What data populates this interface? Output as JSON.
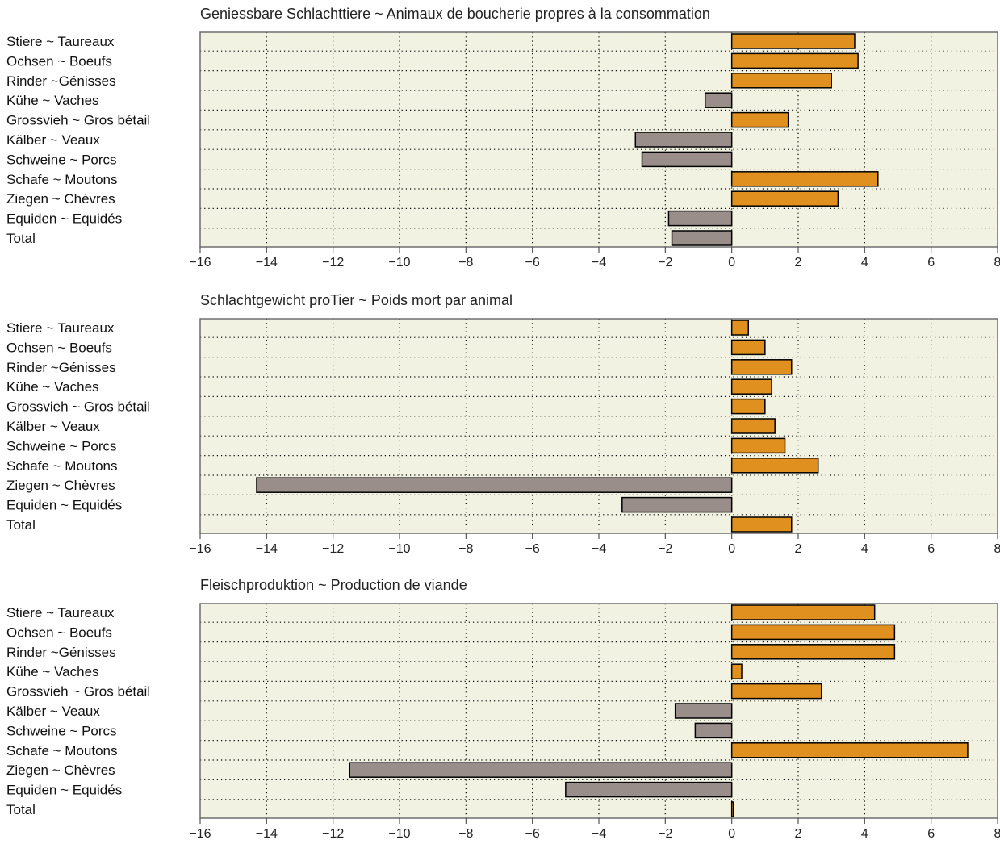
{
  "colors": {
    "positive": "#E0901F",
    "negative": "#9A8E8A",
    "plot_background": "#F2F2E2",
    "bar_border": "#000000"
  },
  "chart_data": [
    {
      "type": "bar",
      "orientation": "horizontal",
      "title": "Geniessbare Schlachttiere ~ Animaux de boucherie propres à la consommation",
      "categories": [
        "Stiere ~ Taureaux",
        "Ochsen ~ Boeufs",
        "Rinder ~Génisses",
        "Kühe ~ Vaches",
        "Grossvieh ~ Gros bétail",
        "Kälber ~ Veaux",
        "Schweine ~ Porcs",
        "Schafe ~ Moutons",
        "Ziegen ~ Chèvres",
        "Equiden ~ Equidés",
        "Total"
      ],
      "values": [
        3.7,
        3.8,
        3.0,
        -0.8,
        1.7,
        -2.9,
        -2.7,
        4.4,
        3.2,
        -1.9,
        -1.8
      ],
      "xlim": [
        -16,
        8
      ],
      "xticks": [
        -16,
        -14,
        -12,
        -10,
        -8,
        -6,
        -4,
        -2,
        0,
        2,
        4,
        6,
        8
      ],
      "grid": true,
      "xlabel": "",
      "ylabel": ""
    },
    {
      "type": "bar",
      "orientation": "horizontal",
      "title": "Schlachtgewicht proTier ~ Poids mort par animal",
      "categories": [
        "Stiere ~ Taureaux",
        "Ochsen ~ Boeufs",
        "Rinder ~Génisses",
        "Kühe ~ Vaches",
        "Grossvieh ~ Gros bétail",
        "Kälber ~ Veaux",
        "Schweine ~ Porcs",
        "Schafe ~ Moutons",
        "Ziegen ~ Chèvres",
        "Equiden ~ Equidés",
        "Total"
      ],
      "values": [
        0.5,
        1.0,
        1.8,
        1.2,
        1.0,
        1.3,
        1.6,
        2.6,
        -14.3,
        -3.3,
        1.8
      ],
      "xlim": [
        -16,
        8
      ],
      "xticks": [
        -16,
        -14,
        -12,
        -10,
        -8,
        -6,
        -4,
        -2,
        0,
        2,
        4,
        6,
        8
      ],
      "grid": true,
      "xlabel": "",
      "ylabel": ""
    },
    {
      "type": "bar",
      "orientation": "horizontal",
      "title": "Fleischproduktion ~ Production de viande",
      "categories": [
        "Stiere ~ Taureaux",
        "Ochsen ~ Boeufs",
        "Rinder ~Génisses",
        "Kühe ~ Vaches",
        "Grossvieh ~ Gros bétail",
        "Kälber ~ Veaux",
        "Schweine ~ Porcs",
        "Schafe ~ Moutons",
        "Ziegen ~ Chèvres",
        "Equiden ~ Equidés",
        "Total"
      ],
      "values": [
        4.3,
        4.9,
        4.9,
        0.3,
        2.7,
        -1.7,
        -1.1,
        7.1,
        -11.5,
        -5.0,
        0.05
      ],
      "xlim": [
        -16,
        8
      ],
      "xticks": [
        -16,
        -14,
        -12,
        -10,
        -8,
        -6,
        -4,
        -2,
        0,
        2,
        4,
        6,
        8
      ],
      "grid": true,
      "xlabel": "",
      "ylabel": ""
    }
  ]
}
